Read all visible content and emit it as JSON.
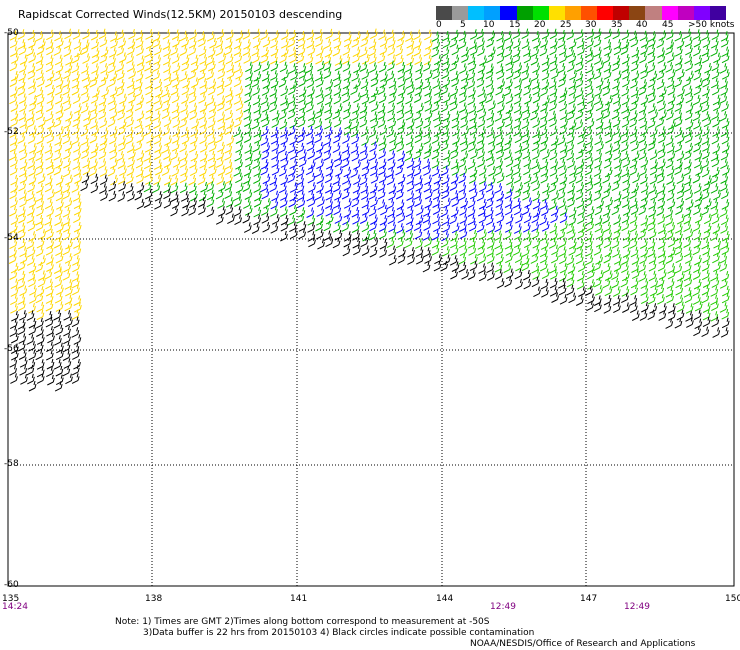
{
  "title": "Rapidscat Corrected Winds(12.5KM) 20150103 descending",
  "legend": {
    "labels": [
      "0",
      "5",
      "10",
      "15",
      "20",
      "25",
      "30",
      "35",
      "40",
      "45",
      ">50 knots"
    ],
    "colors": [
      "#4a4a4a",
      "#9a9a9a",
      "#00bfff",
      "#00a0ff",
      "#0000ff",
      "#00a000",
      "#00e000",
      "#ffe000",
      "#ffa000",
      "#ff5000",
      "#ff0000",
      "#c00000",
      "#8b4513",
      "#c08080",
      "#ff00ff",
      "#c000c0",
      "#8000ff",
      "#4000a0"
    ]
  },
  "axes": {
    "lat_labels": [
      "-50",
      "-52",
      "-54",
      "-56",
      "-58",
      "-60"
    ],
    "lon_labels": [
      "135",
      "138",
      "141",
      "144",
      "147",
      "150"
    ]
  },
  "times": [
    "14:24",
    "12:49",
    "12:49"
  ],
  "notes": [
    "Note: 1) Times are GMT 2)Times along bottom correspond to measurement at -50S",
    "3)Data buffer is 22 hrs from 20150103 4) Black circles indicate possible contamination"
  ],
  "credit": "NOAA/NESDIS/Office of Research and Applications",
  "wind_colors": {
    "black": "#000000",
    "blue": "#0000ff",
    "green": "#00b000",
    "lightgreen": "#22cc00",
    "yellow": "#ffd700",
    "orange": "#e07000"
  }
}
